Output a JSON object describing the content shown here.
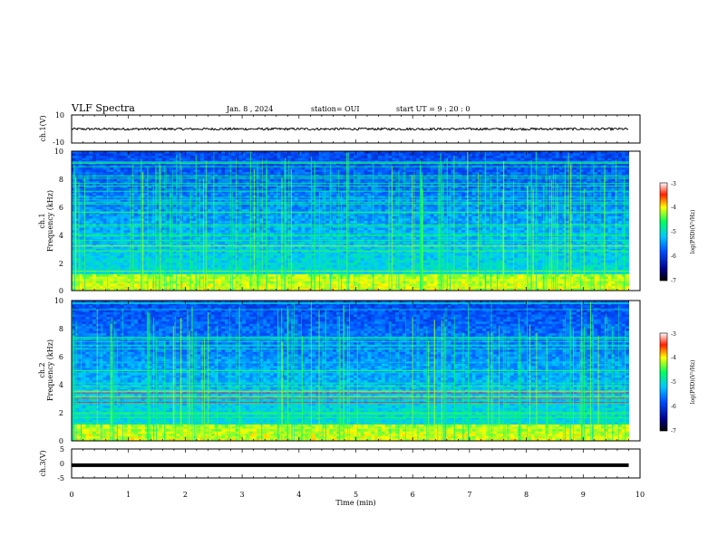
{
  "header": {
    "title": "VLF Spectra",
    "date": "Jan. 8 , 2024",
    "station": "station= OUI",
    "start": "start UT = 9 : 20 : 0"
  },
  "chart_data": [
    {
      "type": "line",
      "panel": "ch1-waveform",
      "ylabel": "ch.1(V)",
      "ylim": [
        -10,
        10
      ],
      "yticks": [
        "10",
        "-10"
      ],
      "x": [
        0,
        9.8
      ],
      "approx_level_V": 0,
      "description_values": {
        "baseline": 0
      }
    },
    {
      "type": "heatmap",
      "panel": "ch1-spectrogram",
      "ylabel_lines": [
        "ch.1",
        "Frequency (kHz)"
      ],
      "ylim": [
        0,
        10
      ],
      "yticks": [
        "0",
        "2",
        "4",
        "6",
        "8",
        "10"
      ],
      "xlim": [
        0,
        10
      ],
      "data_xmax": 9.8,
      "colorbar": {
        "label": "log(PSD)(V²/Hz)",
        "range": [
          -7,
          -3
        ],
        "ticks": [
          "-3",
          "-4",
          "-5",
          "-6",
          "-7"
        ]
      }
    },
    {
      "type": "heatmap",
      "panel": "ch2-spectrogram",
      "ylabel_lines": [
        "ch.2",
        "Frequency (kHz)"
      ],
      "ylim": [
        0,
        10
      ],
      "yticks": [
        "0",
        "2",
        "4",
        "6",
        "8",
        "10"
      ],
      "xlim": [
        0,
        10
      ],
      "data_xmax": 9.8,
      "colorbar": {
        "label": "log(PSD)(V²/Hz)",
        "range": [
          -7,
          -3
        ],
        "ticks": [
          "-3",
          "-4",
          "-5",
          "-6",
          "-7"
        ]
      }
    },
    {
      "type": "line",
      "panel": "ch3-waveform",
      "ylabel": "ch.3(V)",
      "ylim": [
        -5,
        5
      ],
      "yticks": [
        "5",
        "0",
        "-5"
      ],
      "x": [
        0,
        9.8
      ],
      "approx_level_V": -0.6
    }
  ],
  "xaxis": {
    "label": "Time (min)",
    "ticks": [
      "0",
      "1",
      "2",
      "3",
      "4",
      "5",
      "6",
      "7",
      "8",
      "9",
      "10"
    ]
  }
}
